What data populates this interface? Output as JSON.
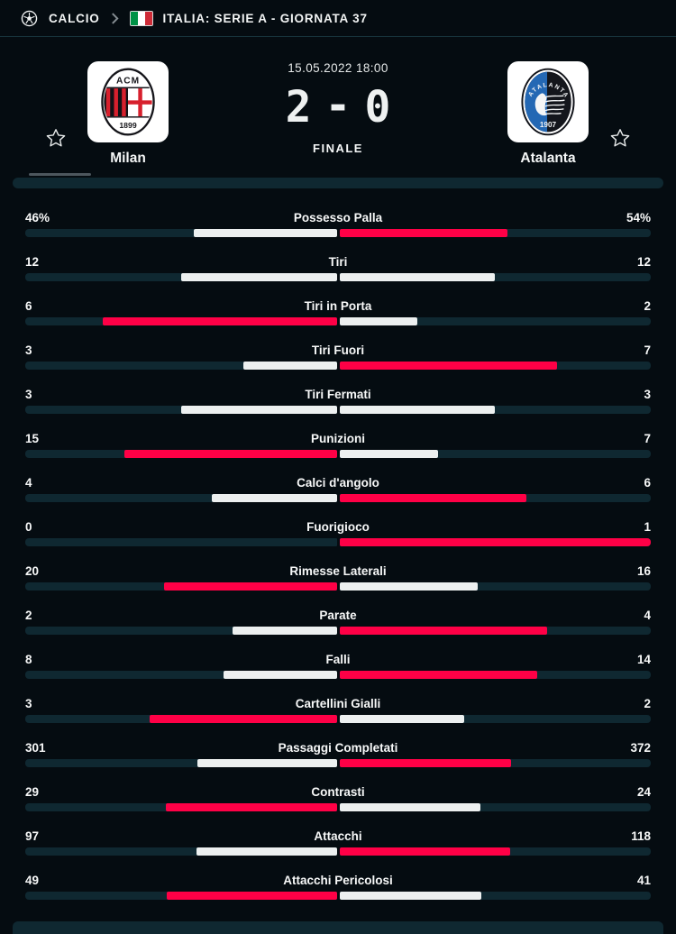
{
  "topbar": {
    "sport_label": "CALCIO",
    "league_label": "ITALIA: SERIE A - GIORNATA 37"
  },
  "header": {
    "datetime": "15.05.2022 18:00",
    "home_score": "2",
    "separator": "-",
    "away_score": "0",
    "status": "FINALE",
    "home_team": "Milan",
    "away_team": "Atalanta",
    "home_crest": {
      "acronym": "ACM",
      "year": "1899"
    },
    "away_crest": {
      "name": "ATALANTA",
      "year": "1907"
    }
  },
  "stats": [
    {
      "label": "Possesso Palla",
      "home": "46%",
      "away": "54%",
      "home_value": 46,
      "away_value": 54
    },
    {
      "label": "Tiri",
      "home": "12",
      "away": "12",
      "home_value": 12,
      "away_value": 12
    },
    {
      "label": "Tiri in Porta",
      "home": "6",
      "away": "2",
      "home_value": 6,
      "away_value": 2
    },
    {
      "label": "Tiri Fuori",
      "home": "3",
      "away": "7",
      "home_value": 3,
      "away_value": 7
    },
    {
      "label": "Tiri Fermati",
      "home": "3",
      "away": "3",
      "home_value": 3,
      "away_value": 3
    },
    {
      "label": "Punizioni",
      "home": "15",
      "away": "7",
      "home_value": 15,
      "away_value": 7
    },
    {
      "label": "Calci d'angolo",
      "home": "4",
      "away": "6",
      "home_value": 4,
      "away_value": 6
    },
    {
      "label": "Fuorigioco",
      "home": "0",
      "away": "1",
      "home_value": 0,
      "away_value": 1
    },
    {
      "label": "Rimesse Laterali",
      "home": "20",
      "away": "16",
      "home_value": 20,
      "away_value": 16
    },
    {
      "label": "Parate",
      "home": "2",
      "away": "4",
      "home_value": 2,
      "away_value": 4
    },
    {
      "label": "Falli",
      "home": "8",
      "away": "14",
      "home_value": 8,
      "away_value": 14
    },
    {
      "label": "Cartellini Gialli",
      "home": "3",
      "away": "2",
      "home_value": 3,
      "away_value": 2
    },
    {
      "label": "Passaggi Completati",
      "home": "301",
      "away": "372",
      "home_value": 301,
      "away_value": 372
    },
    {
      "label": "Contrasti",
      "home": "29",
      "away": "24",
      "home_value": 29,
      "away_value": 24
    },
    {
      "label": "Attacchi",
      "home": "97",
      "away": "118",
      "home_value": 97,
      "away_value": 118
    },
    {
      "label": "Attacchi Pericolosi",
      "home": "49",
      "away": "41",
      "home_value": 49,
      "away_value": 41
    }
  ],
  "colors": {
    "background": "#050c11",
    "accent_red": "#ff0046",
    "bar_neutral": "#edf0f0",
    "bar_track": "#0f2831",
    "flag_green": "#009246",
    "flag_white": "#ffffff",
    "flag_red": "#ce2b37"
  }
}
